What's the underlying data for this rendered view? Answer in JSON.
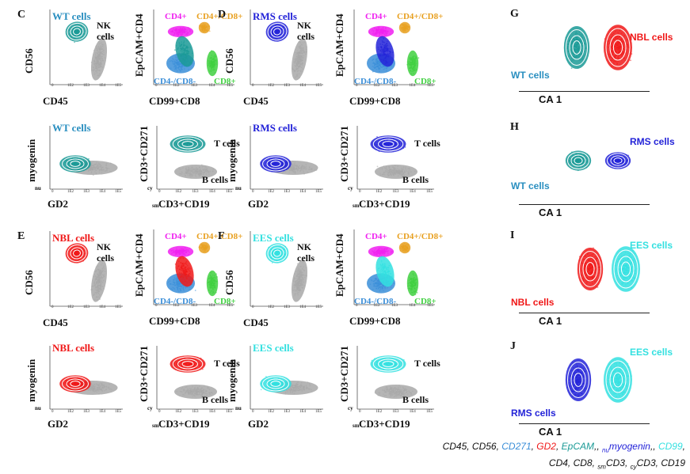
{
  "panels": {
    "C": {
      "letter": "C",
      "cells": "WT cells",
      "nk": "NK cells",
      "yaxis": "CD56",
      "xaxis": "CD45",
      "cd4_y": "EpCAM+CD4",
      "cd4_x": "CD99+CD8",
      "cd4": "CD4+",
      "cd48": "CD4+/CD8+",
      "dn": "CD4-/CD8-",
      "cd8": "CD8+",
      "myo_y": "myogenin",
      "myo_sub": "nu",
      "gd2": "GD2",
      "t_y": "CD3+CD271",
      "t_sub": "cy",
      "t_x": "CD3+CD19",
      "t_xsub": "sm",
      "tcells": "T cells",
      "bcells": "B cells"
    },
    "D": {
      "letter": "D",
      "cells": "RMS cells",
      "nk": "NK cells",
      "yaxis": "CD56",
      "xaxis": "CD45",
      "cd4_y": "EpCAM+CD4",
      "cd4_x": "CD99+CD8",
      "cd4": "CD4+",
      "cd48": "CD4+/CD8+",
      "dn": "CD4-/CD8-",
      "cd8": "CD8+",
      "myo_y": "myogenin",
      "myo_sub": "nu",
      "gd2": "GD2",
      "t_y": "CD3+CD271",
      "t_sub": "cy",
      "t_x": "CD3+CD19",
      "t_xsub": "sm",
      "tcells": "T cells",
      "bcells": "B cells"
    },
    "E": {
      "letter": "E",
      "cells": "NBL cells",
      "nk": "NK cells",
      "yaxis": "CD56",
      "xaxis": "CD45",
      "cd4_y": "EpCAM+CD4",
      "cd4_x": "CD99+CD8",
      "cd4": "CD4+",
      "cd48": "CD4+/CD8+",
      "dn": "CD4-/CD8-",
      "cd8": "CD8+",
      "myo_y": "myogenin",
      "myo_sub": "nu",
      "gd2": "GD2",
      "t_y": "CD3+CD271",
      "t_sub": "cy",
      "t_x": "CD3+CD19",
      "t_xsub": "sm",
      "tcells": "T cells",
      "bcells": "B cells"
    },
    "F": {
      "letter": "F",
      "cells": "EES cells",
      "nk": "NK cells",
      "yaxis": "CD56",
      "xaxis": "CD45",
      "cd4_y": "EpCAM+CD4",
      "cd4_x": "CD99+CD8",
      "cd4": "CD4+",
      "cd48": "CD4+/CD8+",
      "dn": "CD4-/CD8-",
      "cd8": "CD8+",
      "myo_y": "myogenin",
      "myo_sub": "nu",
      "gd2": "GD2",
      "t_y": "CD3+CD271",
      "t_sub": "cy",
      "t_x": "CD3+CD19",
      "t_xsub": "sm",
      "tcells": "T cells",
      "bcells": "B cells"
    }
  },
  "ca_panels": {
    "G": {
      "letter": "G",
      "left": "WT cells",
      "right": "NBL cells",
      "axis": "CA 1"
    },
    "H": {
      "letter": "H",
      "left": "WT cells",
      "right": "RMS cells",
      "axis": "CA 1"
    },
    "I": {
      "letter": "I",
      "left": "NBL cells",
      "right": "EES cells",
      "axis": "CA 1"
    },
    "J": {
      "letter": "J",
      "left": "RMS cells",
      "right": "EES cells",
      "axis": "CA 1"
    }
  },
  "ticks": [
    "0",
    "1E2",
    "1E3",
    "1E4",
    "1E5"
  ],
  "legend": {
    "line1_prefix": "CD45, CD56, ",
    "cd271": "CD271",
    "sep1": ", ",
    "gd2": "GD2",
    "sep2": ", ",
    "epcam": "EpCAM",
    "sep3": ",, ",
    "nu": "nu",
    "myogenin": "myogenin",
    "sep4": ",, ",
    "cd99": "CD99",
    "sep5": ",",
    "line2": "CD4, CD8, ",
    "sm": "sm",
    "cd3a": "CD3, ",
    "cy": "cy",
    "cd3b": "CD3, CD19"
  },
  "colors": {
    "wt": "#1a9a96",
    "rms": "#2323d8",
    "nbl": "#f01818",
    "ees": "#33e0e0",
    "gray": "#a8a8a8",
    "cd4": "#f020f0",
    "cd48": "#e8a020",
    "dn": "#3a8ed8",
    "cd8": "#40d040",
    "wtlabel": "#2a8fc0"
  }
}
